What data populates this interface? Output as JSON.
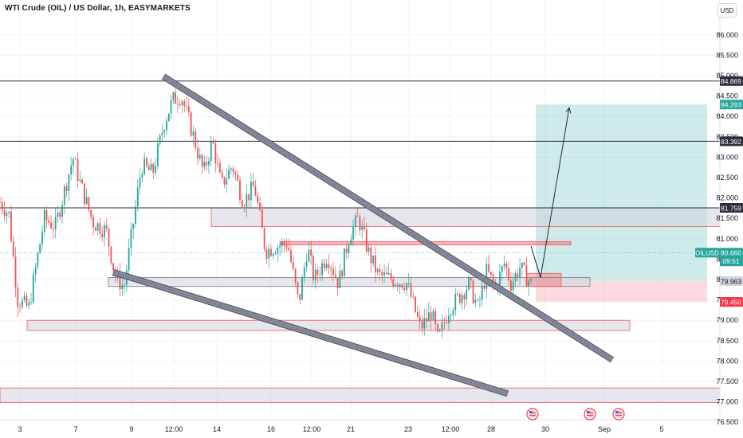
{
  "header": {
    "title": "WTI Crude (OIL) / US Dollar, 1h, EASYMARKETS",
    "currency_button": "USD"
  },
  "colors": {
    "up": "#26a69a",
    "down": "#ef5350",
    "zone_fill": "#d1d4dc",
    "zone_border": "#787b86",
    "red_zone": "#f7525f",
    "channel": "#868993",
    "target_fill": "#26a69a",
    "stop_fill": "#f7525f",
    "level_line": "#2a2e39"
  },
  "chart_data": {
    "type": "candlestick",
    "symbol": "OILUSD",
    "timeframe": "1h",
    "ylim": [
      76.4,
      86.3
    ],
    "y_ticks": [
      76.5,
      77.0,
      77.5,
      78.0,
      78.5,
      79.0,
      79.5,
      80.0,
      80.5,
      81.0,
      81.5,
      82.0,
      82.5,
      83.0,
      83.5,
      84.0,
      84.5,
      85.0,
      85.5,
      86.0
    ],
    "x_labels": [
      "3",
      "7",
      "9",
      "12:00",
      "14",
      "16",
      "12:00",
      "21",
      "23",
      "12:00",
      "28",
      "30",
      "Sep",
      "5"
    ],
    "price_path": [
      [
        0.0,
        81.9
      ],
      [
        0.4,
        81.6
      ],
      [
        0.8,
        79.5
      ],
      [
        1.3,
        79.3
      ],
      [
        2.0,
        81.5
      ],
      [
        2.5,
        81.3
      ],
      [
        3.3,
        83.0
      ],
      [
        3.6,
        82.4
      ],
      [
        4.2,
        81.4
      ],
      [
        4.8,
        81.2
      ],
      [
        5.2,
        80.1
      ],
      [
        5.6,
        79.8
      ],
      [
        6.4,
        82.8
      ],
      [
        6.9,
        82.6
      ],
      [
        7.4,
        83.8
      ],
      [
        7.8,
        84.4
      ],
      [
        8.2,
        84.5
      ],
      [
        8.7,
        83.6
      ],
      [
        9.2,
        82.6
      ],
      [
        9.6,
        83.4
      ],
      [
        10.0,
        82.3
      ],
      [
        10.5,
        82.8
      ],
      [
        11.0,
        81.9
      ],
      [
        11.5,
        82.3
      ],
      [
        12.0,
        80.7
      ],
      [
        12.4,
        80.8
      ],
      [
        13.0,
        80.9
      ],
      [
        13.5,
        79.4
      ],
      [
        13.9,
        80.8
      ],
      [
        14.2,
        80.0
      ],
      [
        14.8,
        80.6
      ],
      [
        15.3,
        79.9
      ],
      [
        15.8,
        81.1
      ],
      [
        16.2,
        81.5
      ],
      [
        16.7,
        80.6
      ],
      [
        17.1,
        80.1
      ],
      [
        17.8,
        80.0
      ],
      [
        18.4,
        79.9
      ],
      [
        19.0,
        78.8
      ],
      [
        19.5,
        79.2
      ],
      [
        19.8,
        78.5
      ],
      [
        20.3,
        79.3
      ],
      [
        20.8,
        79.6
      ],
      [
        21.2,
        79.9
      ],
      [
        21.6,
        79.3
      ],
      [
        22.0,
        80.2
      ],
      [
        22.4,
        79.8
      ],
      [
        22.8,
        80.4
      ],
      [
        23.1,
        79.9
      ],
      [
        23.5,
        80.3
      ],
      [
        24.0,
        79.9
      ]
    ],
    "levels": [
      {
        "name": "level-84869",
        "price": 84.869,
        "label": "84.869"
      },
      {
        "name": "level-83392",
        "price": 83.392,
        "label": "83.392"
      },
      {
        "name": "level-81759",
        "price": 81.759,
        "label": "81.759"
      }
    ],
    "zones": [
      {
        "name": "zone-resistance-81",
        "top": 81.759,
        "bottom": 81.3,
        "x_start": 265,
        "x_end": 903
      },
      {
        "name": "zone-support-7996",
        "top": 80.05,
        "bottom": 79.83,
        "x_start": 136,
        "x_end": 740
      },
      {
        "name": "zone-support-7885",
        "top": 79.0,
        "bottom": 78.75,
        "x_start": 34,
        "x_end": 790
      },
      {
        "name": "zone-bottom-7710",
        "top": 77.34,
        "bottom": 76.98,
        "x_start": 0,
        "x_end": 903
      }
    ],
    "red_zones": [
      {
        "name": "zone-red-8090",
        "top": 80.93,
        "bottom": 80.85,
        "x_start": 352,
        "x_end": 716
      }
    ],
    "position": {
      "entry": 79.963,
      "target": 84.293,
      "stop": 79.45,
      "x_start": 672,
      "x_end": 887
    },
    "channel": {
      "upper": [
        [
          205,
          84.98
        ],
        [
          768,
          78.03
        ]
      ],
      "lower": [
        [
          142,
          80.18
        ],
        [
          637,
          77.2
        ]
      ]
    },
    "projection": [
      [
        666,
        80.82
      ],
      [
        678,
        80.05
      ],
      [
        714,
        84.21
      ]
    ],
    "price_labels": [
      {
        "name": "label-84869",
        "text": "84.869",
        "price": 84.869,
        "bg": "#2a2e39",
        "fg": "#ffffff"
      },
      {
        "name": "label-84293",
        "text": "84.293",
        "price": 84.293,
        "bg": "#26a69a",
        "fg": "#ffffff"
      },
      {
        "name": "label-83392",
        "text": "83.392",
        "price": 83.392,
        "bg": "#2a2e39",
        "fg": "#ffffff"
      },
      {
        "name": "label-81759",
        "text": "81.759",
        "price": 81.759,
        "bg": "#2a2e39",
        "fg": "#ffffff"
      },
      {
        "name": "label-79963",
        "text": "79.963",
        "price": 79.963,
        "bg": "#d1d4dc",
        "fg": "#131722"
      },
      {
        "name": "label-79450",
        "text": "79.450",
        "price": 79.45,
        "bg": "#f23645",
        "fg": "#ffffff"
      }
    ],
    "current": {
      "symbol": "OILUSD",
      "price": 80.66,
      "price_text": "80.660",
      "countdown": "09:51"
    }
  }
}
